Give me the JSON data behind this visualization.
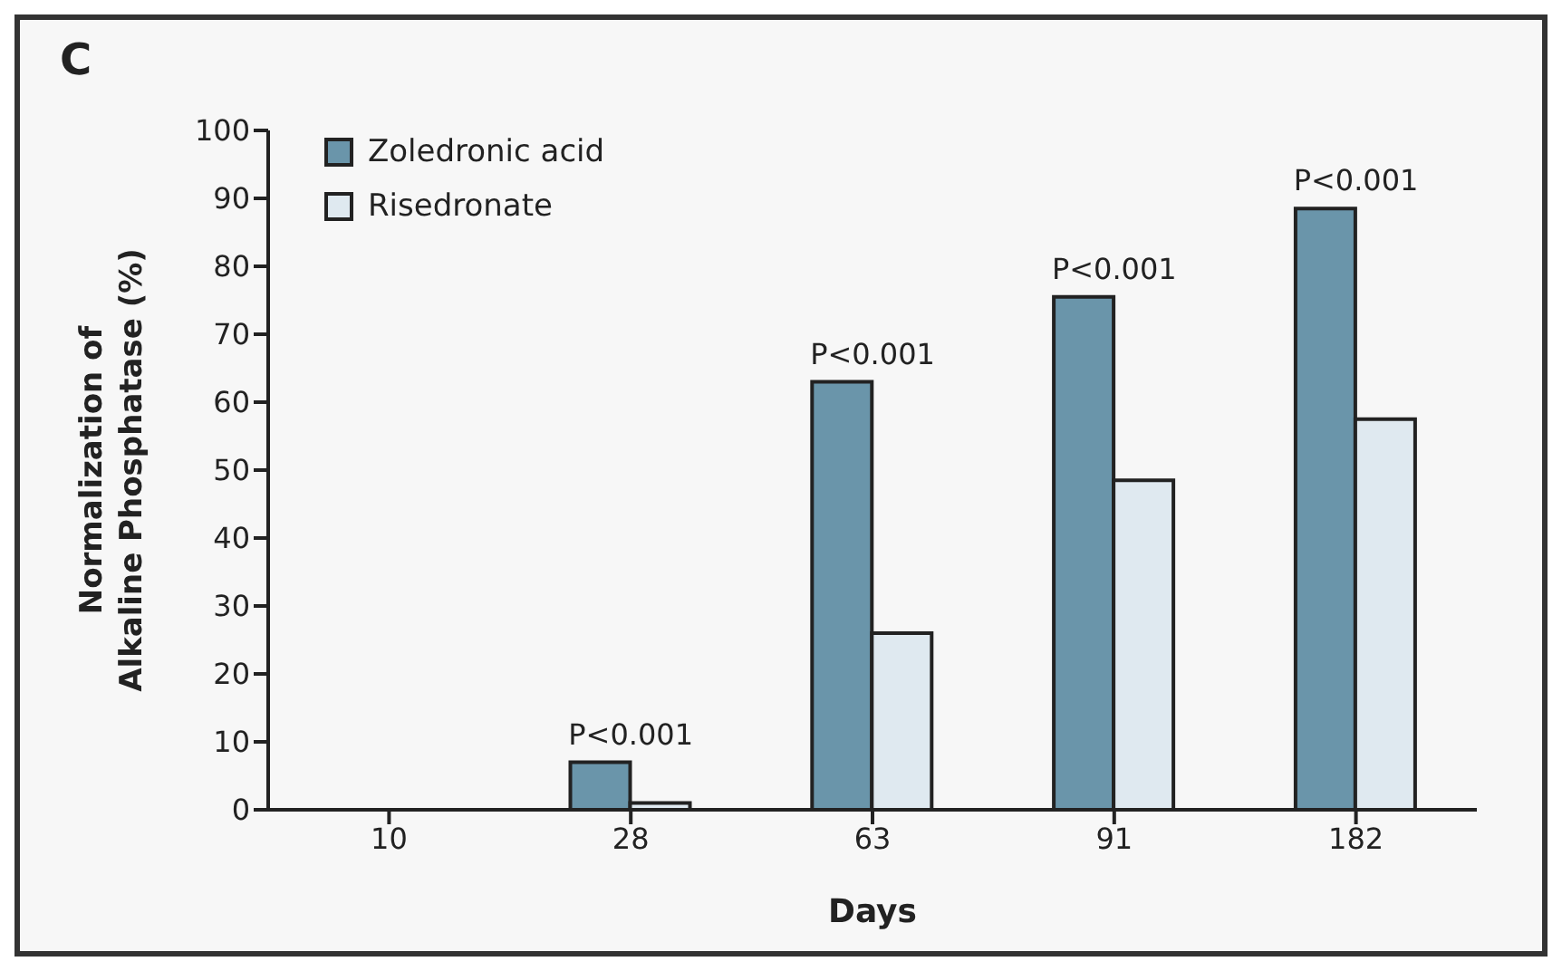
{
  "chart_data": {
    "type": "bar",
    "title": "C",
    "xlabel": "Days",
    "ylabel": "Normalization of Alkaline Phosphatase (%)",
    "categories": [
      "10",
      "28",
      "63",
      "91",
      "182"
    ],
    "series": [
      {
        "name": "Zoledronic acid",
        "color": "#6a95aa",
        "values": [
          0,
          7,
          63,
          75.5,
          88.5
        ]
      },
      {
        "name": "Risedronate",
        "color": "#dfe9f0",
        "values": [
          0,
          1,
          26,
          48.5,
          57.5
        ]
      }
    ],
    "ylim": [
      0,
      100
    ],
    "yticks": [
      0,
      10,
      20,
      30,
      40,
      50,
      60,
      70,
      80,
      90,
      100
    ],
    "grid": false,
    "legend": "top left",
    "annotations": [
      {
        "text": "P<0.001",
        "x": "28",
        "y": 7
      },
      {
        "text": "P<0.001",
        "x": "63",
        "y": 63
      },
      {
        "text": "P<0.001",
        "x": "91",
        "y": 75.5
      },
      {
        "text": "P<0.001",
        "x": "182",
        "y": 88.5
      }
    ]
  }
}
